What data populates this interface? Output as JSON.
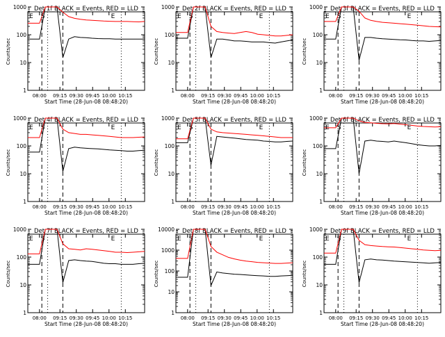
{
  "figure": {
    "ylabel": "Counts/sec",
    "xlabel": "Start Time (28-Jun-08 08:48:20)",
    "ytick_labels": [
      "1",
      "10",
      "100",
      "1000"
    ],
    "ytick_labels_big": [
      "1",
      "10",
      "100",
      "1000",
      "10000"
    ],
    "xtick_labels": [
      "08:00",
      "09:15",
      "09:30",
      "09:45",
      "10:00",
      "10:15"
    ],
    "colors": {
      "events": "#000000",
      "lld": "#ff0000",
      "axes": "#000000",
      "background": "#ffffff"
    },
    "markers": {
      "start": "E",
      "saa": "S",
      "end": "E"
    }
  },
  "chart_data": [
    {
      "type": "line",
      "title": "Det 1f BLACK = Events, RED = LLD",
      "yscale": "log",
      "ylim": [
        1,
        1000
      ],
      "series": [
        {
          "values": [
            70,
            70,
            70,
            1000,
            1000,
            1000,
            15,
            70,
            85,
            80,
            78,
            75,
            73,
            72,
            72,
            70,
            70,
            70,
            70,
            70,
            70
          ]
        },
        {
          "values": [
            260,
            260,
            260,
            1000,
            1000,
            1000,
            650,
            450,
            390,
            360,
            340,
            330,
            320,
            310,
            305,
            300,
            300,
            300,
            295,
            290,
            300
          ]
        }
      ]
    },
    {
      "type": "line",
      "title": "Det 2f BLACK = Events, RED = LLD",
      "yscale": "log",
      "ylim": [
        1,
        1000
      ],
      "series": [
        {
          "values": [
            75,
            75,
            75,
            1000,
            1000,
            1000,
            15,
            70,
            70,
            65,
            60,
            60,
            58,
            55,
            55,
            55,
            52,
            50,
            55,
            60,
            65
          ]
        },
        {
          "values": [
            120,
            120,
            120,
            1000,
            1000,
            1000,
            200,
            130,
            120,
            115,
            110,
            120,
            130,
            120,
            105,
            100,
            95,
            90,
            90,
            95,
            100
          ]
        }
      ]
    },
    {
      "type": "line",
      "title": "Det 3f BLACK = Events, RED = LLD",
      "yscale": "log",
      "ylim": [
        1,
        1000
      ],
      "series": [
        {
          "values": [
            70,
            70,
            70,
            1000,
            1000,
            1000,
            12,
            80,
            80,
            75,
            72,
            70,
            68,
            66,
            65,
            62,
            60,
            60,
            58,
            60,
            62
          ]
        },
        {
          "values": [
            300,
            300,
            300,
            1000,
            1000,
            1000,
            700,
            400,
            330,
            300,
            280,
            270,
            260,
            250,
            240,
            230,
            220,
            210,
            200,
            195,
            190
          ]
        }
      ]
    },
    {
      "type": "line",
      "title": "Det 4f BLACK = Events, RED = LLD",
      "yscale": "log",
      "ylim": [
        1,
        1000
      ],
      "series": [
        {
          "values": [
            60,
            60,
            60,
            1000,
            1000,
            1000,
            12,
            80,
            90,
            85,
            82,
            80,
            78,
            75,
            72,
            70,
            68,
            65,
            65,
            68,
            70
          ]
        },
        {
          "values": [
            200,
            200,
            200,
            1000,
            1000,
            1000,
            400,
            300,
            280,
            260,
            260,
            250,
            240,
            230,
            220,
            210,
            200,
            200,
            200,
            205,
            210
          ]
        }
      ]
    },
    {
      "type": "line",
      "title": "Det 5f BLACK = Events, RED = LLD",
      "yscale": "log",
      "ylim": [
        1,
        1000
      ],
      "series": [
        {
          "values": [
            130,
            130,
            130,
            1000,
            1000,
            1000,
            20,
            220,
            210,
            200,
            190,
            180,
            170,
            165,
            160,
            150,
            145,
            140,
            140,
            145,
            150
          ]
        },
        {
          "values": [
            180,
            180,
            180,
            1000,
            1000,
            1000,
            400,
            320,
            300,
            290,
            280,
            270,
            260,
            250,
            240,
            230,
            220,
            210,
            200,
            200,
            200
          ]
        }
      ]
    },
    {
      "type": "line",
      "title": "Det 6f BLACK = Events, RED = LLD",
      "yscale": "log",
      "ylim": [
        1,
        1000
      ],
      "series": [
        {
          "values": [
            80,
            80,
            80,
            1000,
            1000,
            1000,
            10,
            150,
            160,
            150,
            145,
            140,
            150,
            140,
            130,
            120,
            110,
            105,
            100,
            100,
            105
          ]
        },
        {
          "values": [
            450,
            450,
            450,
            1000,
            1000,
            1000,
            800,
            700,
            680,
            650,
            630,
            620,
            640,
            610,
            580,
            550,
            520,
            500,
            490,
            480,
            490
          ]
        }
      ]
    },
    {
      "type": "line",
      "title": "Det 7f BLACK = Events, RED = LLD",
      "yscale": "log",
      "ylim": [
        1,
        1000
      ],
      "series": [
        {
          "values": [
            55,
            55,
            55,
            1000,
            1000,
            1000,
            12,
            75,
            80,
            75,
            72,
            70,
            65,
            60,
            58,
            58,
            55,
            55,
            55,
            58,
            60
          ]
        },
        {
          "values": [
            130,
            130,
            130,
            1000,
            1000,
            1000,
            300,
            200,
            190,
            180,
            200,
            190,
            180,
            170,
            160,
            150,
            150,
            145,
            150,
            155,
            160
          ]
        }
      ]
    },
    {
      "type": "line",
      "title": "Det 8f BLACK = Events, RED = LLD",
      "yscale": "log",
      "ylim": [
        1,
        10000
      ],
      "series": [
        {
          "values": [
            50,
            50,
            50,
            10000,
            10000,
            10000,
            20,
            90,
            80,
            75,
            70,
            68,
            65,
            62,
            60,
            58,
            55,
            55,
            58,
            60,
            62
          ]
        },
        {
          "values": [
            400,
            400,
            400,
            10000,
            10000,
            10000,
            1500,
            800,
            600,
            450,
            380,
            330,
            300,
            280,
            260,
            250,
            240,
            230,
            230,
            240,
            250
          ]
        }
      ]
    },
    {
      "type": "line",
      "title": "Det 9f BLACK = Events, RED = LLD",
      "yscale": "log",
      "ylim": [
        1,
        1000
      ],
      "series": [
        {
          "values": [
            55,
            55,
            55,
            1000,
            1000,
            1000,
            12,
            80,
            85,
            80,
            78,
            75,
            72,
            70,
            68,
            66,
            64,
            62,
            60,
            62,
            64
          ]
        },
        {
          "values": [
            140,
            140,
            140,
            1000,
            1000,
            1000,
            400,
            280,
            260,
            250,
            240,
            235,
            230,
            220,
            210,
            200,
            190,
            180,
            175,
            170,
            175
          ]
        }
      ]
    }
  ]
}
